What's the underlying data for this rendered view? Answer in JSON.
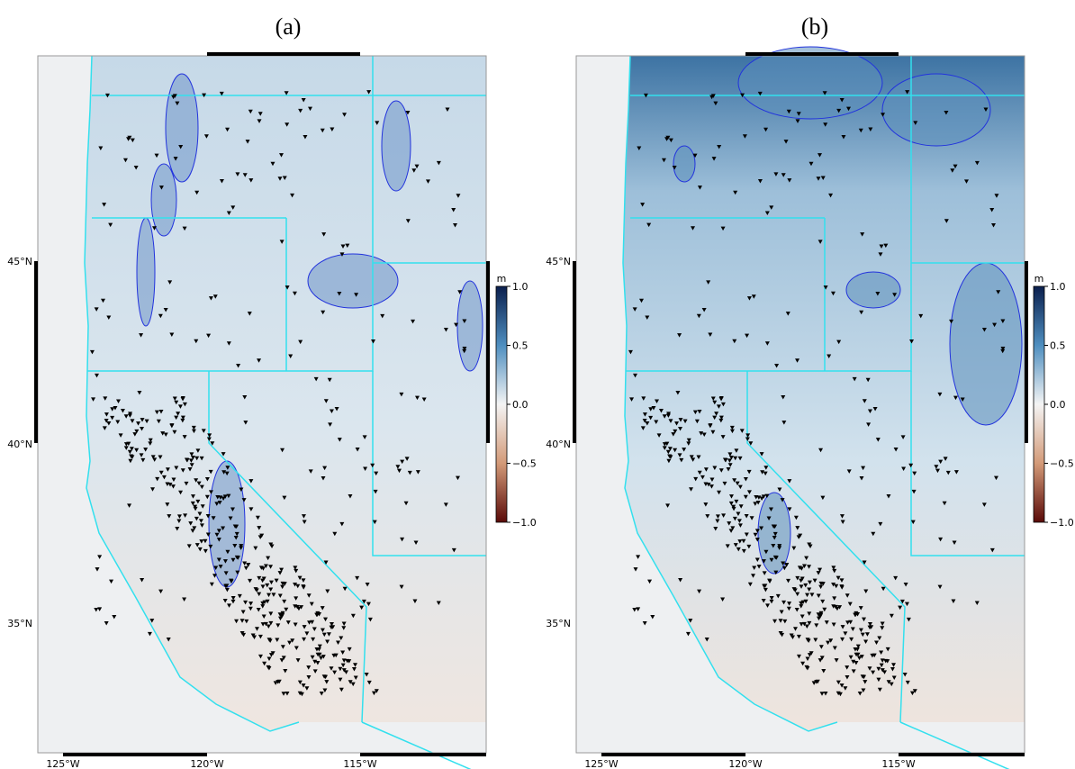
{
  "panels": [
    {
      "label": "(a)",
      "lon_labels": [
        "125°W",
        "120°W",
        "115°W"
      ],
      "lat_labels": [
        "45°N",
        "40°N",
        "35°N"
      ],
      "colorbar": {
        "unit": "m",
        "ticks": [
          {
            "value": 1,
            "label": "1.0"
          },
          {
            "value": 0.5,
            "label": "0.5"
          },
          {
            "value": 0,
            "label": "0.0"
          },
          {
            "value": -0.5,
            "label": "−0.5"
          },
          {
            "value": -1,
            "label": "−1.0"
          }
        ]
      }
    },
    {
      "label": "(b)",
      "lon_labels": [
        "125°W",
        "120°W",
        "115°W"
      ],
      "lat_labels": [
        "45°N",
        "40°N",
        "35°N"
      ],
      "colorbar": {
        "unit": "m",
        "ticks": [
          {
            "value": 1,
            "label": "1.0"
          },
          {
            "value": 0.5,
            "label": "0.5"
          },
          {
            "value": 0,
            "label": "0.0"
          },
          {
            "value": -0.5,
            "label": "−0.5"
          },
          {
            "value": -1,
            "label": "−1.0"
          }
        ]
      }
    }
  ]
}
